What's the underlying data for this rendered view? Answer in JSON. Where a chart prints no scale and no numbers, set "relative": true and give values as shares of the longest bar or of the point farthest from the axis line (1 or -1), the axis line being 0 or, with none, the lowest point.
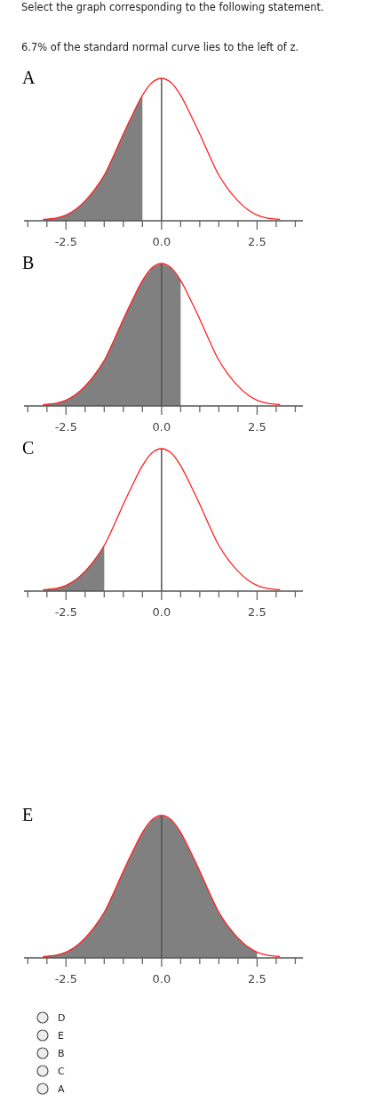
{
  "chart_data": [
    {
      "type": "other",
      "title": "Select the graph corresponding to the following statement.",
      "subtitle": "6.7% of the standard normal curve lies to the left of z."
    },
    {
      "type": "line",
      "title": "A",
      "relative": true,
      "xlim": [
        -3.6,
        3.7
      ],
      "xticks": [
        {
          "value": -3.5,
          "label": null
        },
        {
          "value": -3,
          "label": null
        },
        {
          "value": -2.5,
          "label": "-2.5"
        },
        {
          "value": -2,
          "label": null
        },
        {
          "value": -1.5,
          "label": null
        },
        {
          "value": -1,
          "label": null
        },
        {
          "value": -0.5,
          "label": null
        },
        {
          "value": 0,
          "label": "0.0"
        },
        {
          "value": 0.5,
          "label": null
        },
        {
          "value": 1,
          "label": null
        },
        {
          "value": 1.5,
          "label": null
        },
        {
          "value": 2,
          "label": null
        },
        {
          "value": 2.5,
          "label": "2.5"
        },
        {
          "value": 3,
          "label": null
        },
        {
          "value": 3.5,
          "label": null
        }
      ],
      "ref_lines": [
        {
          "axis": "x",
          "value": 0,
          "color": "#555555"
        }
      ],
      "series": [
        {
          "type": "area",
          "color": "#808080",
          "x": [
            -3.1,
            -2.75,
            -2.5,
            -2.25,
            -2,
            -1.75,
            -1.5,
            -1.25,
            -1,
            -0.75,
            -0.5
          ],
          "values": [
            0.01,
            0.02,
            0.04,
            0.08,
            0.14,
            0.22,
            0.32,
            0.46,
            0.61,
            0.75,
            0.88
          ]
        },
        {
          "type": "line",
          "color": "#ff2020",
          "x": [
            -3.1,
            -2.75,
            -2.5,
            -2.25,
            -2,
            -1.75,
            -1.5,
            -1.25,
            -1,
            -0.75,
            -0.5,
            -0.25,
            0,
            0.25,
            0.5,
            0.75,
            1,
            1.25,
            1.5,
            1.75,
            2,
            2.25,
            2.5,
            2.75,
            3.1
          ],
          "values": [
            0.01,
            0.02,
            0.04,
            0.08,
            0.14,
            0.22,
            0.32,
            0.46,
            0.61,
            0.75,
            0.88,
            0.97,
            1,
            0.97,
            0.88,
            0.75,
            0.61,
            0.46,
            0.32,
            0.22,
            0.14,
            0.08,
            0.04,
            0.02,
            0.01
          ]
        }
      ]
    },
    {
      "type": "line",
      "title": "B",
      "relative": true,
      "xlim": [
        -3.6,
        3.7
      ],
      "xticks": [
        {
          "value": -3.5,
          "label": null
        },
        {
          "value": -3,
          "label": null
        },
        {
          "value": -2.5,
          "label": "-2.5"
        },
        {
          "value": -2,
          "label": null
        },
        {
          "value": -1.5,
          "label": null
        },
        {
          "value": -1,
          "label": null
        },
        {
          "value": -0.5,
          "label": null
        },
        {
          "value": 0,
          "label": "0.0"
        },
        {
          "value": 0.5,
          "label": null
        },
        {
          "value": 1,
          "label": null
        },
        {
          "value": 1.5,
          "label": null
        },
        {
          "value": 2,
          "label": null
        },
        {
          "value": 2.5,
          "label": "2.5"
        },
        {
          "value": 3,
          "label": null
        },
        {
          "value": 3.5,
          "label": null
        }
      ],
      "ref_lines": [
        {
          "axis": "x",
          "value": 0,
          "color": "#555555"
        }
      ],
      "series": [
        {
          "type": "area",
          "color": "#808080",
          "x": [
            -3.1,
            -2.75,
            -2.5,
            -2.25,
            -2,
            -1.75,
            -1.5,
            -1.25,
            -1,
            -0.75,
            -0.5,
            -0.25,
            0,
            0.25,
            0.5
          ],
          "values": [
            0.01,
            0.02,
            0.04,
            0.08,
            0.14,
            0.22,
            0.32,
            0.46,
            0.61,
            0.75,
            0.88,
            0.97,
            1,
            0.97,
            0.88
          ]
        },
        {
          "type": "line",
          "color": "#ff2020",
          "x": [
            -3.1,
            -2.75,
            -2.5,
            -2.25,
            -2,
            -1.75,
            -1.5,
            -1.25,
            -1,
            -0.75,
            -0.5,
            -0.25,
            0,
            0.25,
            0.5,
            0.75,
            1,
            1.25,
            1.5,
            1.75,
            2,
            2.25,
            2.5,
            2.75,
            3.1
          ],
          "values": [
            0.01,
            0.02,
            0.04,
            0.08,
            0.14,
            0.22,
            0.32,
            0.46,
            0.61,
            0.75,
            0.88,
            0.97,
            1,
            0.97,
            0.88,
            0.75,
            0.61,
            0.46,
            0.32,
            0.22,
            0.14,
            0.08,
            0.04,
            0.02,
            0.01
          ]
        }
      ]
    },
    {
      "type": "line",
      "title": "C",
      "relative": true,
      "xlim": [
        -3.6,
        3.7
      ],
      "xticks": [
        {
          "value": -3.5,
          "label": null
        },
        {
          "value": -3,
          "label": null
        },
        {
          "value": -2.5,
          "label": "-2.5"
        },
        {
          "value": -2,
          "label": null
        },
        {
          "value": -1.5,
          "label": null
        },
        {
          "value": -1,
          "label": null
        },
        {
          "value": -0.5,
          "label": null
        },
        {
          "value": 0,
          "label": "0.0"
        },
        {
          "value": 0.5,
          "label": null
        },
        {
          "value": 1,
          "label": null
        },
        {
          "value": 1.5,
          "label": null
        },
        {
          "value": 2,
          "label": null
        },
        {
          "value": 2.5,
          "label": "2.5"
        },
        {
          "value": 3,
          "label": null
        },
        {
          "value": 3.5,
          "label": null
        }
      ],
      "ref_lines": [
        {
          "axis": "x",
          "value": 0,
          "color": "#555555"
        }
      ],
      "series": [
        {
          "type": "area",
          "color": "#808080",
          "x": [
            -3.1,
            -2.75,
            -2.5,
            -2.25,
            -2,
            -1.75,
            -1.5
          ],
          "values": [
            0.01,
            0.02,
            0.04,
            0.08,
            0.14,
            0.22,
            0.32
          ]
        },
        {
          "type": "line",
          "color": "#ff2020",
          "x": [
            -3.1,
            -2.75,
            -2.5,
            -2.25,
            -2,
            -1.75,
            -1.5,
            -1.25,
            -1,
            -0.75,
            -0.5,
            -0.25,
            0,
            0.25,
            0.5,
            0.75,
            1,
            1.25,
            1.5,
            1.75,
            2,
            2.25,
            2.5,
            2.75,
            3.1
          ],
          "values": [
            0.01,
            0.02,
            0.04,
            0.08,
            0.14,
            0.22,
            0.32,
            0.46,
            0.61,
            0.75,
            0.88,
            0.97,
            1,
            0.97,
            0.88,
            0.75,
            0.61,
            0.46,
            0.32,
            0.22,
            0.14,
            0.08,
            0.04,
            0.02,
            0.01
          ]
        }
      ]
    },
    {
      "type": "line",
      "title": "E",
      "relative": true,
      "xlim": [
        -3.6,
        3.7
      ],
      "xticks": [
        {
          "value": -3.5,
          "label": null
        },
        {
          "value": -3,
          "label": null
        },
        {
          "value": -2.5,
          "label": "-2.5"
        },
        {
          "value": -2,
          "label": null
        },
        {
          "value": -1.5,
          "label": null
        },
        {
          "value": -1,
          "label": null
        },
        {
          "value": -0.5,
          "label": null
        },
        {
          "value": 0,
          "label": "0.0"
        },
        {
          "value": 0.5,
          "label": null
        },
        {
          "value": 1,
          "label": null
        },
        {
          "value": 1.5,
          "label": null
        },
        {
          "value": 2,
          "label": null
        },
        {
          "value": 2.5,
          "label": "2.5"
        },
        {
          "value": 3,
          "label": null
        },
        {
          "value": 3.5,
          "label": null
        }
      ],
      "ref_lines": [
        {
          "axis": "x",
          "value": 0,
          "color": "#555555"
        }
      ],
      "series": [
        {
          "type": "area",
          "color": "#808080",
          "x": [
            -3.1,
            -2.75,
            -2.5,
            -2.25,
            -2,
            -1.75,
            -1.5,
            -1.25,
            -1,
            -0.75,
            -0.5,
            -0.25,
            0,
            0.25,
            0.5,
            0.75,
            1,
            1.25,
            1.5,
            1.75,
            2,
            2.25,
            2.5
          ],
          "values": [
            0.01,
            0.02,
            0.04,
            0.08,
            0.14,
            0.22,
            0.32,
            0.46,
            0.61,
            0.75,
            0.88,
            0.97,
            1,
            0.97,
            0.88,
            0.75,
            0.61,
            0.46,
            0.32,
            0.22,
            0.14,
            0.08,
            0.04
          ]
        },
        {
          "type": "line",
          "color": "#ff2020",
          "x": [
            -3.1,
            -2.75,
            -2.5,
            -2.25,
            -2,
            -1.75,
            -1.5,
            -1.25,
            -1,
            -0.75,
            -0.5,
            -0.25,
            0,
            0.25,
            0.5,
            0.75,
            1,
            1.25,
            1.5,
            1.75,
            2,
            2.25,
            2.5,
            2.75,
            3.1
          ],
          "values": [
            0.01,
            0.02,
            0.04,
            0.08,
            0.14,
            0.22,
            0.32,
            0.46,
            0.61,
            0.75,
            0.88,
            0.97,
            1,
            0.97,
            0.88,
            0.75,
            0.61,
            0.46,
            0.32,
            0.22,
            0.14,
            0.08,
            0.04,
            0.02,
            0.01
          ]
        }
      ]
    },
    {
      "type": "other",
      "annotations": [
        "D",
        "E",
        "B",
        "C",
        "A"
      ]
    }
  ]
}
